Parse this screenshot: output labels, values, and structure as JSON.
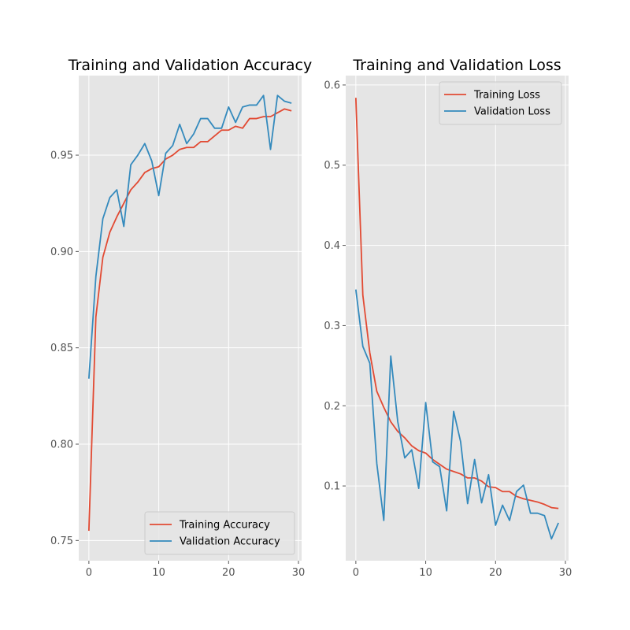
{
  "chart_data": [
    {
      "type": "line",
      "title": "Training and Validation Accuracy",
      "xlabel": "",
      "ylabel": "",
      "xlim": [
        -1.45,
        30.45
      ],
      "ylim": [
        0.7395,
        0.9913
      ],
      "xticks": [
        0,
        10,
        20,
        30
      ],
      "xtick_labels": [
        "0",
        "10",
        "20",
        "30"
      ],
      "yticks": [
        0.75,
        0.8,
        0.85,
        0.9,
        0.95
      ],
      "ytick_labels": [
        "0.75",
        "0.80",
        "0.85",
        "0.90",
        "0.95"
      ],
      "grid": true,
      "legend_position": "lower-right",
      "x": [
        0,
        1,
        2,
        3,
        4,
        5,
        6,
        7,
        8,
        9,
        10,
        11,
        12,
        13,
        14,
        15,
        16,
        17,
        18,
        19,
        20,
        21,
        22,
        23,
        24,
        25,
        26,
        27,
        28,
        29
      ],
      "series": [
        {
          "name": "Training Accuracy",
          "color": "#e24a33",
          "values": [
            0.755,
            0.866,
            0.897,
            0.91,
            0.918,
            0.925,
            0.932,
            0.936,
            0.941,
            0.943,
            0.944,
            0.948,
            0.95,
            0.953,
            0.954,
            0.954,
            0.957,
            0.957,
            0.96,
            0.963,
            0.963,
            0.965,
            0.964,
            0.969,
            0.969,
            0.97,
            0.97,
            0.972,
            0.974,
            0.973
          ]
        },
        {
          "name": "Validation Accuracy",
          "color": "#348abd",
          "values": [
            0.834,
            0.887,
            0.917,
            0.928,
            0.932,
            0.913,
            0.945,
            0.95,
            0.956,
            0.947,
            0.929,
            0.951,
            0.955,
            0.966,
            0.956,
            0.961,
            0.969,
            0.969,
            0.964,
            0.964,
            0.975,
            0.967,
            0.975,
            0.976,
            0.976,
            0.981,
            0.953,
            0.981,
            0.978,
            0.977
          ]
        }
      ]
    },
    {
      "type": "line",
      "title": "Training and Validation Loss",
      "xlabel": "",
      "ylabel": "",
      "xlim": [
        -1.45,
        30.45
      ],
      "ylim": [
        0.0068,
        0.6117
      ],
      "xticks": [
        0,
        10,
        20,
        30
      ],
      "xtick_labels": [
        "0",
        "10",
        "20",
        "30"
      ],
      "yticks": [
        0.1,
        0.2,
        0.3,
        0.4,
        0.5,
        0.6
      ],
      "ytick_labels": [
        "0.1",
        "0.2",
        "0.3",
        "0.4",
        "0.5",
        "0.6"
      ],
      "grid": true,
      "legend_position": "upper-right",
      "x": [
        0,
        1,
        2,
        3,
        4,
        5,
        6,
        7,
        8,
        9,
        10,
        11,
        12,
        13,
        14,
        15,
        16,
        17,
        18,
        19,
        20,
        21,
        22,
        23,
        24,
        25,
        26,
        27,
        28,
        29
      ],
      "series": [
        {
          "name": "Training Loss",
          "color": "#e24a33",
          "values": [
            0.584,
            0.338,
            0.266,
            0.218,
            0.198,
            0.18,
            0.168,
            0.16,
            0.15,
            0.144,
            0.141,
            0.133,
            0.127,
            0.121,
            0.118,
            0.115,
            0.11,
            0.11,
            0.106,
            0.099,
            0.098,
            0.093,
            0.093,
            0.087,
            0.084,
            0.082,
            0.08,
            0.077,
            0.073,
            0.072
          ]
        },
        {
          "name": "Validation Loss",
          "color": "#348abd",
          "values": [
            0.345,
            0.274,
            0.253,
            0.128,
            0.057,
            0.262,
            0.18,
            0.135,
            0.145,
            0.097,
            0.204,
            0.13,
            0.124,
            0.069,
            0.193,
            0.155,
            0.078,
            0.133,
            0.079,
            0.114,
            0.051,
            0.076,
            0.057,
            0.093,
            0.101,
            0.066,
            0.066,
            0.063,
            0.034,
            0.054
          ]
        }
      ]
    }
  ]
}
